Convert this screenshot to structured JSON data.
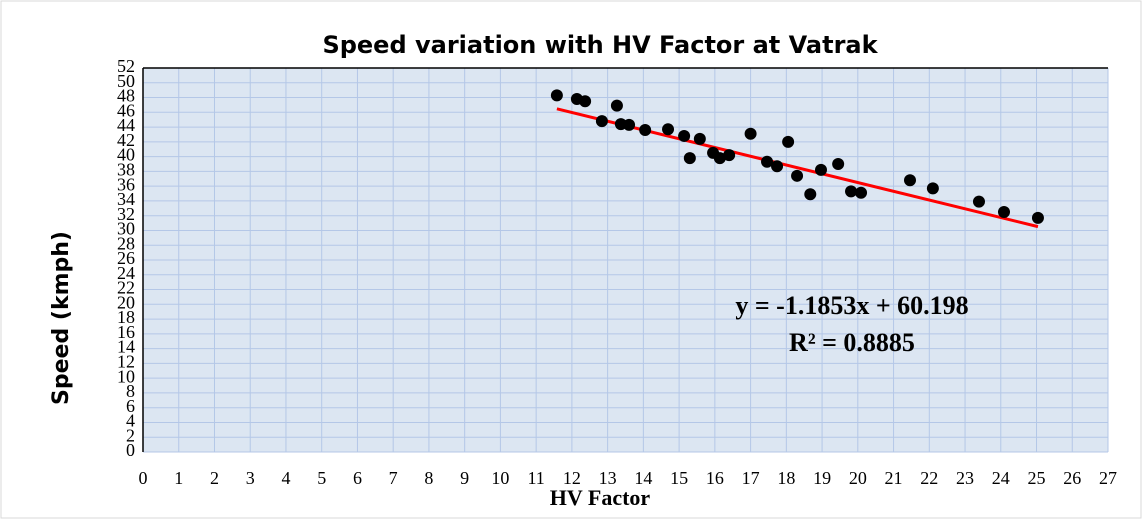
{
  "chart_data": {
    "type": "scatter",
    "title": "Speed variation with HV Factor at Vatrak",
    "x_label": "HV Factor",
    "y_label": "Speed (kmph)",
    "series": [
      {
        "name": "Speed",
        "color": "#000000",
        "x": [
          11.58,
          12.14,
          12.37,
          12.84,
          13.26,
          13.37,
          13.6,
          14.05,
          14.69,
          15.14,
          15.3,
          15.58,
          15.95,
          16.14,
          16.4,
          17.0,
          17.46,
          17.74,
          18.05,
          18.3,
          18.67,
          18.97,
          19.45,
          19.81,
          20.09,
          21.46,
          22.1,
          23.39,
          24.09,
          25.04
        ],
        "values": [
          48.3,
          47.8,
          47.5,
          44.8,
          46.9,
          44.4,
          44.3,
          43.6,
          43.7,
          42.8,
          39.8,
          42.4,
          40.5,
          39.8,
          40.2,
          43.1,
          39.3,
          38.7,
          42.0,
          37.4,
          34.9,
          38.2,
          39.0,
          35.3,
          35.1,
          36.8,
          35.7,
          33.9,
          32.5,
          31.7
        ]
      }
    ],
    "trendline": {
      "slope": -1.1853,
      "intercept": 60.198,
      "color": "#ff0000",
      "equation": "y = -1.1853x + 60.198",
      "r_squared": "R² = 0.8885"
    },
    "xlim": [
      0,
      27
    ],
    "xticks": [
      0,
      1,
      2,
      3,
      4,
      5,
      6,
      7,
      8,
      9,
      10,
      11,
      12,
      13,
      14,
      15,
      16,
      17,
      18,
      19,
      20,
      21,
      22,
      23,
      24,
      25,
      26,
      27
    ],
    "ylim": [
      0,
      52
    ],
    "yticks": [
      0,
      2,
      4,
      6,
      8,
      10,
      12,
      14,
      16,
      18,
      20,
      22,
      24,
      26,
      28,
      30,
      32,
      34,
      36,
      38,
      40,
      42,
      44,
      46,
      48,
      50,
      52
    ],
    "grid": true
  }
}
